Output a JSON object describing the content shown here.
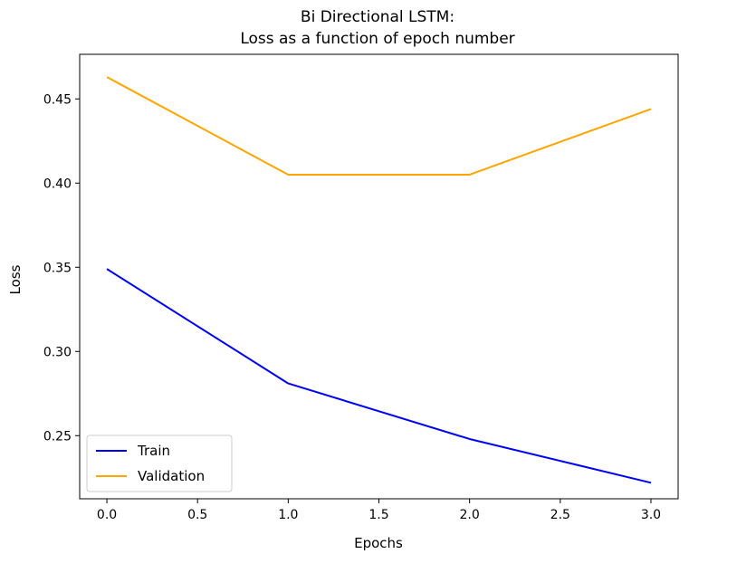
{
  "chart_data": {
    "type": "line",
    "title": "Bi Directional LSTM:",
    "subtitle": "Loss as a function of epoch number",
    "xlabel": "Epochs",
    "ylabel": "Loss",
    "x": [
      0,
      1,
      2,
      3
    ],
    "xlim": [
      -0.15,
      3.15
    ],
    "ylim": [
      0.2125,
      0.4765
    ],
    "xticks": [
      "0.0",
      "0.5",
      "1.0",
      "1.5",
      "2.0",
      "2.5",
      "3.0"
    ],
    "yticks": [
      "0.25",
      "0.30",
      "0.35",
      "0.40",
      "0.45"
    ],
    "grid": false,
    "legend_placement": "lower-left",
    "series": [
      {
        "name": "Train",
        "color": "#0000ff",
        "values": [
          0.349,
          0.281,
          0.248,
          0.222
        ]
      },
      {
        "name": "Validation",
        "color": "#ffa500",
        "values": [
          0.463,
          0.405,
          0.405,
          0.444
        ]
      }
    ]
  }
}
